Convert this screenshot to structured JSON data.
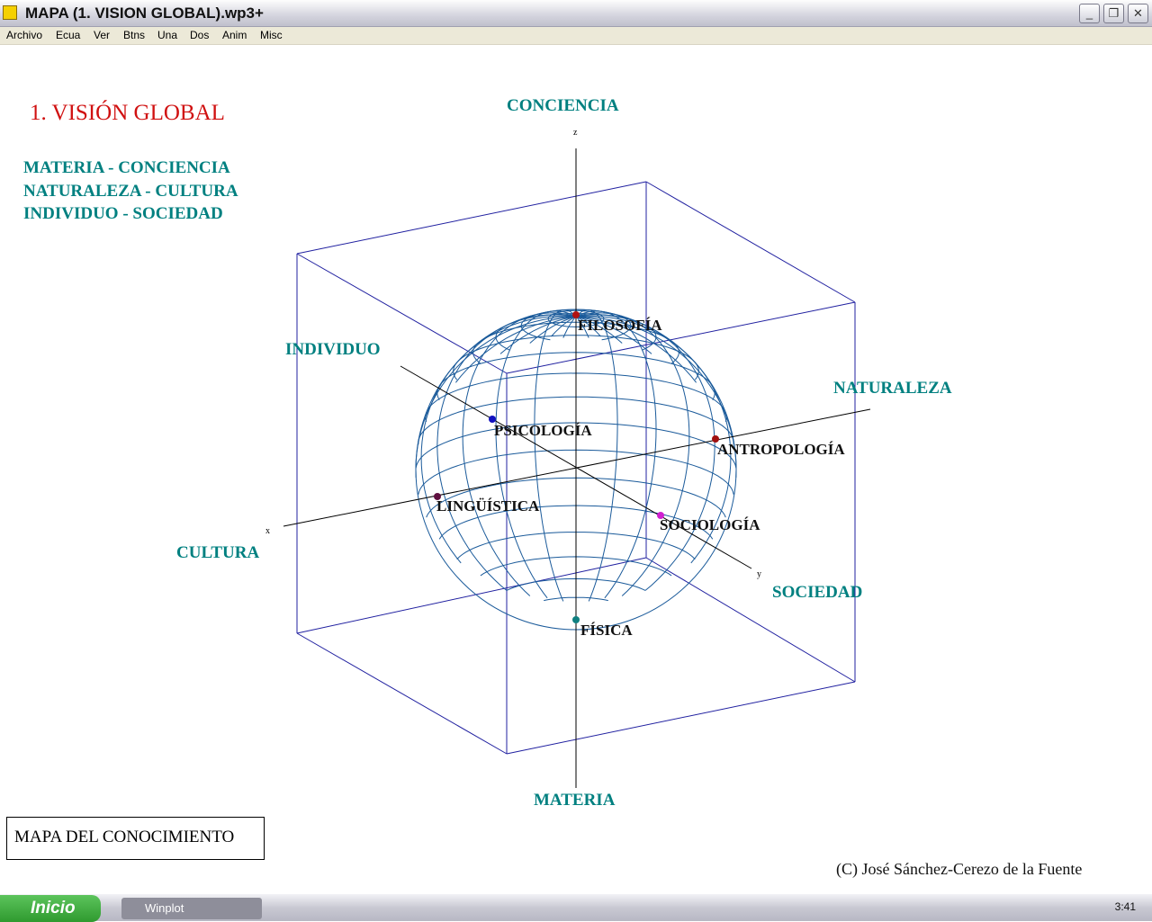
{
  "window": {
    "title": "MAPA (1. VISION GLOBAL).wp3+",
    "minimize": "_",
    "maximize": "❐",
    "close": "✕"
  },
  "menu": [
    "Archivo",
    "Ecua",
    "Ver",
    "Btns",
    "Una",
    "Dos",
    "Anim",
    "Misc"
  ],
  "content": {
    "heading": "1. VISIÓN GLOBAL",
    "pairs": [
      "MATERIA - CONCIENCIA",
      "NATURALEZA - CULTURA",
      "INDIVIDUO - SOCIEDAD"
    ],
    "axis_labels": {
      "z": "z",
      "x": "x",
      "y": "y",
      "top": "CONCIENCIA",
      "bottom": "MATERIA",
      "left": "CULTURA",
      "right": "NATURALEZA",
      "back": "INDIVIDUO",
      "front": "SOCIEDAD"
    },
    "points": [
      {
        "label": "FILOSOFÍA",
        "color": "#b01010"
      },
      {
        "label": "PSICOLOGÍA",
        "color": "#1010c0"
      },
      {
        "label": "ANTROPOLOGÍA",
        "color": "#a01010"
      },
      {
        "label": "LINGÜÍSTICA",
        "color": "#601040"
      },
      {
        "label": "SOCIOLOGÍA",
        "color": "#d020d0"
      },
      {
        "label": "FÍSICA",
        "color": "#108080"
      }
    ],
    "box_label": "MAPA DEL CONOCIMIENTO",
    "copyright": "(C) José Sánchez-Cerezo de la Fuente",
    "colors": {
      "heading": "#d01010",
      "teal": "#008080",
      "cube": "#2020a0",
      "sphere": "#1a5a9a"
    }
  },
  "taskbar": {
    "start": "Inicio",
    "task": "Winplot",
    "clock": "3:41"
  }
}
